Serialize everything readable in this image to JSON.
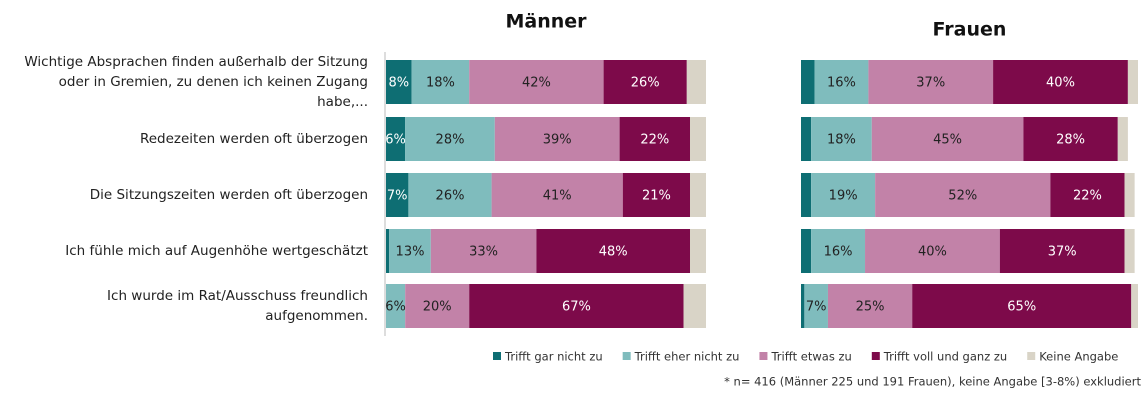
{
  "chart_data": [
    {
      "type": "stacked-barh",
      "title": "Männer",
      "categories": [
        "Wichtige Absprachen finden außerhalb der Sitzung oder in Gremien, zu denen ich keinen Zugang habe,...",
        "Redezeiten werden oft überzogen",
        "Die Sitzungszeiten werden oft überzogen",
        "Ich fühle mich auf Augenhöhe wertgeschätzt",
        "Ich wurde im Rat/Ausschuss freundlich aufgenommen."
      ],
      "xlim": [
        0,
        100
      ],
      "series": [
        {
          "name": "Trifft gar nicht zu",
          "color": "#0e6e73",
          "values": [
            8,
            6,
            7,
            1,
            0
          ],
          "value_labels": [
            "8%",
            "6%",
            "7%",
            null,
            null
          ]
        },
        {
          "name": "Trifft eher nicht zu",
          "color": "#7fbcbd",
          "values": [
            18,
            28,
            26,
            13,
            6
          ],
          "value_labels": [
            "18%",
            "28%",
            "26%",
            "13%",
            "6%"
          ]
        },
        {
          "name": "Trifft etwas zu",
          "color": "#c282a8",
          "values": [
            42,
            39,
            41,
            33,
            20
          ],
          "value_labels": [
            "42%",
            "39%",
            "41%",
            "33%",
            "20%"
          ]
        },
        {
          "name": "Trifft voll und ganz zu",
          "color": "#7d0a4a",
          "values": [
            26,
            22,
            21,
            48,
            67
          ],
          "value_labels": [
            "26%",
            "22%",
            "21%",
            "48%",
            "67%"
          ]
        },
        {
          "name": "Keine Angabe",
          "color": "#d9d4c7",
          "values": [
            6,
            5,
            5,
            5,
            7
          ],
          "value_labels": [
            null,
            null,
            null,
            null,
            null
          ]
        }
      ]
    },
    {
      "type": "stacked-barh",
      "title": "Frauen",
      "categories": [
        null,
        null,
        null,
        null,
        null
      ],
      "xlim": [
        0,
        100
      ],
      "series": [
        {
          "color": "#0e6e73",
          "values": [
            4,
            3,
            3,
            3,
            1
          ],
          "value_labels": [
            null,
            null,
            null,
            null,
            null
          ]
        },
        {
          "color": "#7fbcbd",
          "values": [
            16,
            18,
            19,
            16,
            7
          ],
          "value_labels": [
            "16%",
            "18%",
            "19%",
            "16%",
            "7%"
          ]
        },
        {
          "color": "#c282a8",
          "values": [
            37,
            45,
            52,
            40,
            25
          ],
          "value_labels": [
            "37%",
            "45%",
            "52%",
            "40%",
            "25%"
          ]
        },
        {
          "color": "#7d0a4a",
          "values": [
            40,
            28,
            22,
            37,
            65
          ],
          "value_labels": [
            "40%",
            "28%",
            "22%",
            "37%",
            "65%"
          ]
        },
        {
          "color": "#d9d4c7",
          "values": [
            3,
            3,
            3,
            3,
            2
          ],
          "value_labels": [
            null,
            null,
            null,
            null,
            null
          ]
        }
      ]
    }
  ],
  "footnote": "* n= 416 (Männer 225 und 191 Frauen), keine Angabe [3-8%) exkludiert"
}
